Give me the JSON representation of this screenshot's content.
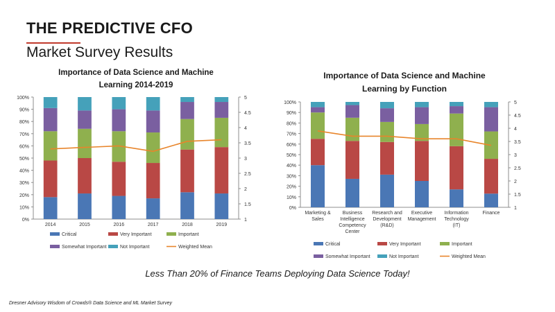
{
  "header": {
    "title": "THE PREDICTIVE CFO",
    "subtitle": "Market Survey Results"
  },
  "footer": {
    "tagline": "Less Than 20% of Finance Teams Deploying Data Science Today!",
    "source": "Dresner Advisory Wisdom of Crowds® Data Science and ML Market Survey"
  },
  "colors": {
    "critical": "#4a77b5",
    "very_important": "#b94845",
    "important": "#8fb04e",
    "somewhat_important": "#7a5fa0",
    "not_important": "#45a1ba",
    "weighted_mean": "#e8852b"
  },
  "chart_data": [
    {
      "type": "bar",
      "stacked": true,
      "title": "Importance of Data Science and Machine Learning 2014-2019",
      "categories": [
        "2014",
        "2015",
        "2016",
        "2017",
        "2018",
        "2019"
      ],
      "ylim": [
        0,
        100
      ],
      "yticks": [
        "0%",
        "10%",
        "20%",
        "30%",
        "40%",
        "50%",
        "60%",
        "70%",
        "80%",
        "90%",
        "100%"
      ],
      "y2lim": [
        1,
        5
      ],
      "y2ticks": [
        "1",
        "1.5",
        "2",
        "2.5",
        "3",
        "3.5",
        "4",
        "4.5",
        "5"
      ],
      "grid": false,
      "legend": "bottom",
      "series": [
        {
          "name": "Critical",
          "key": "critical",
          "values": [
            18,
            21,
            19,
            17,
            22,
            21
          ]
        },
        {
          "name": "Very Important",
          "key": "very_important",
          "values": [
            30,
            29,
            28,
            29,
            35,
            38
          ]
        },
        {
          "name": "Important",
          "key": "important",
          "values": [
            24,
            24,
            25,
            25,
            25,
            24
          ]
        },
        {
          "name": "Somewhat Important",
          "key": "somewhat_important",
          "values": [
            19,
            15,
            18,
            18,
            14,
            13
          ]
        },
        {
          "name": "Not Important",
          "key": "not_important",
          "values": [
            9,
            11,
            10,
            11,
            4,
            4
          ]
        }
      ],
      "line": {
        "name": "Weighted Mean",
        "key": "weighted_mean",
        "axis": "right",
        "values": [
          3.3,
          3.35,
          3.4,
          3.22,
          3.55,
          3.6
        ]
      }
    },
    {
      "type": "bar",
      "stacked": true,
      "title": "Importance of Data Science and Machine Learning by Function",
      "categories": [
        "Marketing & Sales",
        "Business Intelligence Competency Center",
        "Research and Development (R&D)",
        "Executive Management",
        "Information Technology (IT)",
        "Finance"
      ],
      "ylim": [
        0,
        100
      ],
      "yticks": [
        "0%",
        "10%",
        "20%",
        "30%",
        "40%",
        "50%",
        "60%",
        "70%",
        "80%",
        "90%",
        "100%"
      ],
      "y2lim": [
        1,
        5
      ],
      "y2ticks": [
        "1",
        "1.5",
        "2",
        "2.5",
        "3",
        "3.5",
        "4",
        "4.5",
        "5"
      ],
      "grid": false,
      "legend": "bottom",
      "series": [
        {
          "name": "Critical",
          "key": "critical",
          "values": [
            40,
            27,
            31,
            25,
            17,
            13
          ]
        },
        {
          "name": "Very Important",
          "key": "very_important",
          "values": [
            25,
            36,
            31,
            38,
            41,
            33
          ]
        },
        {
          "name": "Important",
          "key": "important",
          "values": [
            25,
            22,
            19,
            16,
            31,
            26
          ]
        },
        {
          "name": "Somewhat Important",
          "key": "somewhat_important",
          "values": [
            5,
            12,
            13,
            16,
            7,
            23
          ]
        },
        {
          "name": "Not Important",
          "key": "not_important",
          "values": [
            5,
            3,
            6,
            5,
            4,
            5
          ]
        }
      ],
      "line": {
        "name": "Weighted Mean",
        "key": "weighted_mean",
        "axis": "right",
        "values": [
          3.9,
          3.7,
          3.7,
          3.6,
          3.6,
          3.35
        ]
      }
    }
  ]
}
